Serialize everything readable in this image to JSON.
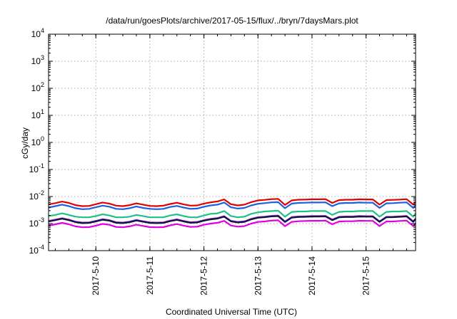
{
  "chart_data": {
    "type": "line",
    "title": "/data/run/goesPlots/archive/2017-05-15/flux/../bryn/7daysMars.plot",
    "xlabel": "Coordinated Universal Time (UTC)",
    "ylabel": "cGy/day",
    "y_scale": "log",
    "ylim": [
      0.0001,
      10000
    ],
    "y_ticks": [
      {
        "base": "10",
        "exp": "-4"
      },
      {
        "base": "10",
        "exp": "-3"
      },
      {
        "base": "10",
        "exp": "-2"
      },
      {
        "base": "10",
        "exp": "-1"
      },
      {
        "base": "10",
        "exp": "0"
      },
      {
        "base": "10",
        "exp": "1"
      },
      {
        "base": "10",
        "exp": "2"
      },
      {
        "base": "10",
        "exp": "3"
      },
      {
        "base": "10",
        "exp": "4"
      }
    ],
    "xlim": [
      "2017-05-09T03:00",
      "2017-05-15T22:00"
    ],
    "x_ticks": [
      "2017-5-10",
      "2017-5-11",
      "2017-5-12",
      "2017-5-13",
      "2017-5-14",
      "2017-5-15"
    ],
    "grid": true,
    "x": [
      "2017-05-09T03:00",
      "2017-05-09T06:00",
      "2017-05-09T09:00",
      "2017-05-09T12:00",
      "2017-05-09T15:00",
      "2017-05-09T18:00",
      "2017-05-09T21:00",
      "2017-05-10T00:00",
      "2017-05-10T03:00",
      "2017-05-10T06:00",
      "2017-05-10T09:00",
      "2017-05-10T12:00",
      "2017-05-10T15:00",
      "2017-05-10T18:00",
      "2017-05-10T21:00",
      "2017-05-11T00:00",
      "2017-05-11T03:00",
      "2017-05-11T06:00",
      "2017-05-11T09:00",
      "2017-05-11T12:00",
      "2017-05-11T15:00",
      "2017-05-11T18:00",
      "2017-05-11T21:00",
      "2017-05-12T00:00",
      "2017-05-12T03:00",
      "2017-05-12T06:00",
      "2017-05-12T09:00",
      "2017-05-12T12:00",
      "2017-05-12T15:00",
      "2017-05-12T18:00",
      "2017-05-12T21:00",
      "2017-05-13T00:00",
      "2017-05-13T03:00",
      "2017-05-13T06:00",
      "2017-05-13T09:00",
      "2017-05-13T12:00",
      "2017-05-13T15:00",
      "2017-05-13T18:00",
      "2017-05-13T21:00",
      "2017-05-14T00:00",
      "2017-05-14T03:00",
      "2017-05-14T06:00",
      "2017-05-14T09:00",
      "2017-05-14T12:00",
      "2017-05-14T15:00",
      "2017-05-14T18:00",
      "2017-05-14T21:00",
      "2017-05-15T00:00",
      "2017-05-15T03:00",
      "2017-05-15T06:00",
      "2017-05-15T09:00",
      "2017-05-15T12:00",
      "2017-05-15T15:00",
      "2017-05-15T18:00",
      "2017-05-15T21:00",
      "2017-05-15T22:00"
    ],
    "series": [
      {
        "color": "#e00000",
        "values": [
          0.0051,
          0.0057,
          0.0065,
          0.0058,
          0.0048,
          0.0044,
          0.0045,
          0.0052,
          0.006,
          0.0055,
          0.0046,
          0.0044,
          0.0048,
          0.0056,
          0.005,
          0.0045,
          0.0044,
          0.0046,
          0.0053,
          0.0059,
          0.0051,
          0.0046,
          0.0047,
          0.0055,
          0.0061,
          0.0066,
          0.0078,
          0.0052,
          0.0047,
          0.005,
          0.0062,
          0.0072,
          0.0075,
          0.008,
          0.0082,
          0.0049,
          0.0072,
          0.0076,
          0.0077,
          0.0079,
          0.0079,
          0.008,
          0.0058,
          0.0074,
          0.0076,
          0.0076,
          0.0079,
          0.0078,
          0.0078,
          0.005,
          0.0074,
          0.0075,
          0.0077,
          0.008,
          0.005,
          0.0064
        ]
      },
      {
        "color": "#1e5fe0",
        "values": [
          0.0039,
          0.0044,
          0.005,
          0.0044,
          0.0037,
          0.0034,
          0.0035,
          0.004,
          0.0046,
          0.0042,
          0.0035,
          0.0034,
          0.0037,
          0.0043,
          0.0038,
          0.0035,
          0.0034,
          0.0035,
          0.0041,
          0.0045,
          0.0039,
          0.0035,
          0.0036,
          0.0042,
          0.0047,
          0.005,
          0.006,
          0.004,
          0.0036,
          0.0038,
          0.0047,
          0.0054,
          0.0057,
          0.0061,
          0.0062,
          0.0037,
          0.0055,
          0.0058,
          0.0059,
          0.006,
          0.006,
          0.0061,
          0.0044,
          0.0056,
          0.0058,
          0.0058,
          0.006,
          0.0059,
          0.0059,
          0.0038,
          0.0056,
          0.0057,
          0.0059,
          0.0061,
          0.0038,
          0.0049
        ]
      },
      {
        "color": "#1fbf8a",
        "values": [
          0.0019,
          0.0021,
          0.0024,
          0.0021,
          0.0018,
          0.0017,
          0.0017,
          0.0019,
          0.0022,
          0.002,
          0.0017,
          0.0017,
          0.0018,
          0.0021,
          0.0019,
          0.0017,
          0.0017,
          0.0017,
          0.002,
          0.0022,
          0.0019,
          0.0017,
          0.0017,
          0.002,
          0.0023,
          0.0024,
          0.0029,
          0.0019,
          0.0017,
          0.0018,
          0.0023,
          0.0026,
          0.0028,
          0.0029,
          0.003,
          0.0018,
          0.0027,
          0.0028,
          0.0028,
          0.0029,
          0.0029,
          0.0029,
          0.0021,
          0.0027,
          0.0028,
          0.0028,
          0.0029,
          0.0029,
          0.0029,
          0.0018,
          0.0027,
          0.0028,
          0.0028,
          0.0029,
          0.0018,
          0.0024
        ]
      },
      {
        "color": "#9a2aa8",
        "values": [
          0.00125,
          0.0014,
          0.00158,
          0.0014,
          0.00118,
          0.00109,
          0.00111,
          0.00126,
          0.00145,
          0.00134,
          0.00112,
          0.00109,
          0.00118,
          0.00136,
          0.00122,
          0.00111,
          0.00109,
          0.00111,
          0.00129,
          0.00143,
          0.00125,
          0.00112,
          0.00115,
          0.00134,
          0.0015,
          0.0016,
          0.00188,
          0.00127,
          0.00115,
          0.00121,
          0.0015,
          0.00172,
          0.0018,
          0.00192,
          0.00198,
          0.00119,
          0.00174,
          0.00183,
          0.00186,
          0.0019,
          0.0019,
          0.00192,
          0.0014,
          0.00178,
          0.00183,
          0.00183,
          0.0019,
          0.00188,
          0.00188,
          0.00121,
          0.00178,
          0.0018,
          0.00186,
          0.00192,
          0.00121,
          0.00155
        ]
      },
      {
        "color": "#10104a",
        "values": [
          0.0012,
          0.00134,
          0.00151,
          0.00134,
          0.00113,
          0.00104,
          0.00106,
          0.0012,
          0.00139,
          0.00128,
          0.00107,
          0.00104,
          0.00113,
          0.0013,
          0.00117,
          0.00106,
          0.00104,
          0.00106,
          0.00123,
          0.00137,
          0.0012,
          0.00107,
          0.0011,
          0.00128,
          0.00143,
          0.00153,
          0.0018,
          0.00121,
          0.0011,
          0.00116,
          0.00143,
          0.00164,
          0.00172,
          0.00184,
          0.00189,
          0.00114,
          0.00166,
          0.00175,
          0.00178,
          0.00182,
          0.00182,
          0.00184,
          0.00134,
          0.0017,
          0.00175,
          0.00175,
          0.00182,
          0.0018,
          0.0018,
          0.00116,
          0.0017,
          0.00172,
          0.00178,
          0.00184,
          0.00116,
          0.00148
        ]
      },
      {
        "color": "#e000e0",
        "values": [
          0.00084,
          0.00094,
          0.00106,
          0.00094,
          0.00079,
          0.00073,
          0.00074,
          0.00084,
          0.00097,
          0.0009,
          0.00075,
          0.00073,
          0.00079,
          0.00091,
          0.00082,
          0.00074,
          0.00073,
          0.00074,
          0.00086,
          0.00096,
          0.00084,
          0.00075,
          0.00077,
          0.0009,
          0.001,
          0.00107,
          0.00126,
          0.00085,
          0.00077,
          0.00081,
          0.001,
          0.00115,
          0.0012,
          0.00129,
          0.00132,
          0.0008,
          0.00116,
          0.00122,
          0.00125,
          0.00127,
          0.00127,
          0.00129,
          0.00094,
          0.00119,
          0.00122,
          0.00122,
          0.00127,
          0.00126,
          0.00126,
          0.00081,
          0.00119,
          0.0012,
          0.00125,
          0.00129,
          0.00081,
          0.00104
        ]
      }
    ]
  }
}
